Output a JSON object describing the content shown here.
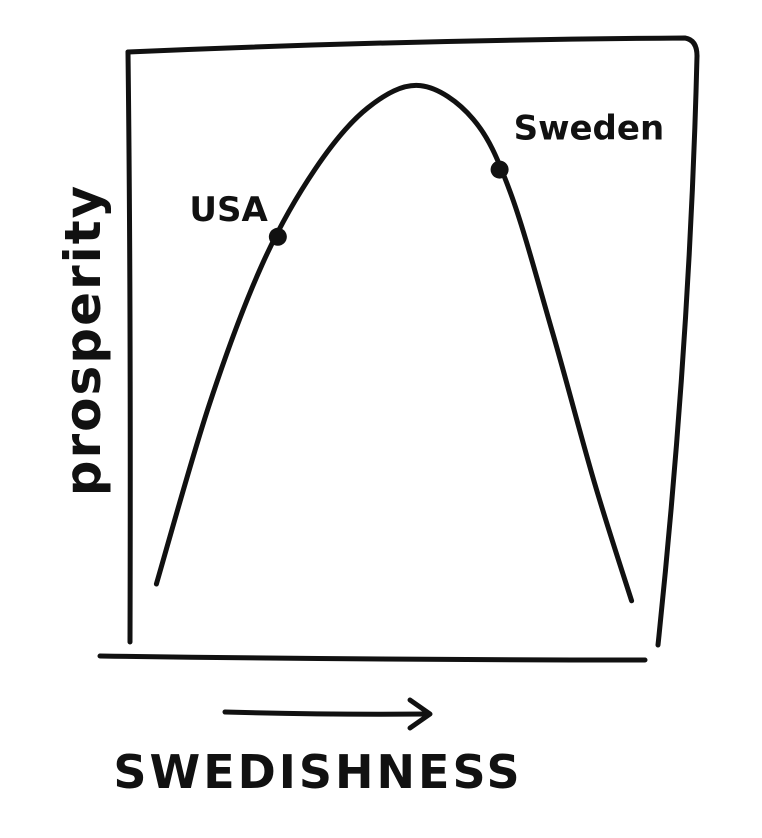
{
  "chart_data": {
    "type": "line",
    "title": "",
    "xlabel": "SWEDISHNESS",
    "ylabel": "prosperity",
    "xlim": [
      0,
      1
    ],
    "ylim": [
      0,
      1
    ],
    "grid": false,
    "legend": "none",
    "series": [
      {
        "x": [
          0.05,
          0.15,
          0.25,
          0.35,
          0.45,
          0.55,
          0.65,
          0.72,
          0.8,
          0.88,
          0.95
        ],
        "y": [
          0.1,
          0.42,
          0.67,
          0.84,
          0.95,
          0.99,
          0.93,
          0.8,
          0.55,
          0.28,
          0.07
        ],
        "color": "#111111"
      }
    ],
    "annotations": [
      {
        "label": "USA",
        "x": 0.28,
        "y": 0.72
      },
      {
        "label": "Sweden",
        "x": 0.7,
        "y": 0.84
      }
    ]
  }
}
